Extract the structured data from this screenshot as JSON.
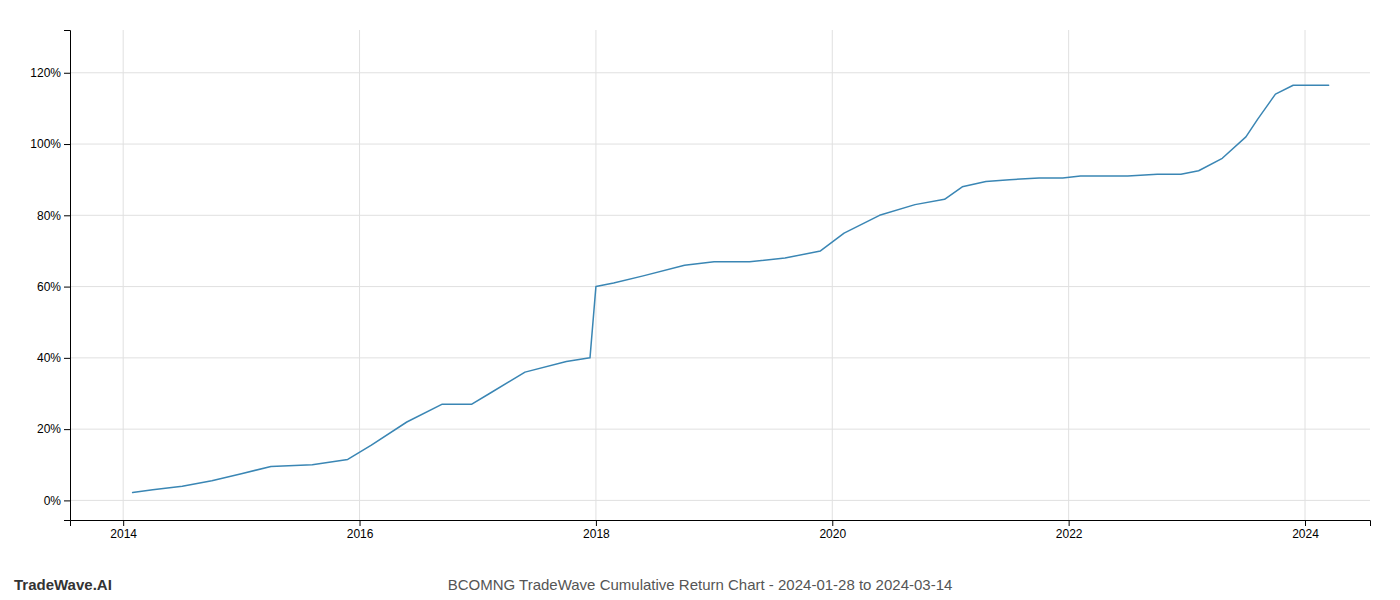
{
  "chart_data": {
    "type": "line",
    "title": "BCOMNG TradeWave Cumulative Return Chart - 2024-01-28 to 2024-03-14",
    "annotations": [
      "TradeWave.AI"
    ],
    "color": "#3a86b4",
    "grid": true,
    "x": [
      2014.08,
      2014.25,
      2014.5,
      2014.75,
      2015.0,
      2015.25,
      2015.6,
      2015.9,
      2016.1,
      2016.4,
      2016.7,
      2016.95,
      2017.1,
      2017.4,
      2017.75,
      2017.95,
      2018.0,
      2018.15,
      2018.4,
      2018.75,
      2019.0,
      2019.3,
      2019.6,
      2019.9,
      2020.1,
      2020.4,
      2020.7,
      2020.95,
      2021.1,
      2021.3,
      2021.5,
      2021.75,
      2021.95,
      2022.1,
      2022.3,
      2022.5,
      2022.75,
      2022.95,
      2023.1,
      2023.3,
      2023.5,
      2023.6,
      2023.75,
      2023.9,
      2024.0,
      2024.15,
      2024.2
    ],
    "values": [
      0.022,
      0.03,
      0.04,
      0.055,
      0.075,
      0.095,
      0.1,
      0.115,
      0.155,
      0.22,
      0.27,
      0.27,
      0.3,
      0.36,
      0.39,
      0.4,
      0.6,
      0.61,
      0.63,
      0.66,
      0.67,
      0.67,
      0.68,
      0.7,
      0.75,
      0.8,
      0.83,
      0.845,
      0.88,
      0.895,
      0.9,
      0.905,
      0.905,
      0.91,
      0.91,
      0.91,
      0.915,
      0.915,
      0.925,
      0.96,
      1.02,
      1.07,
      1.14,
      1.165,
      1.165,
      1.165,
      1.165
    ],
    "xlim": [
      2013.55,
      2024.55
    ],
    "ylim": [
      -0.055,
      1.32
    ],
    "xticks": [
      2014,
      2016,
      2018,
      2020,
      2022,
      2024
    ],
    "yticks": [
      {
        "value": 0.0,
        "label": "0%"
      },
      {
        "value": 0.2,
        "label": "20%"
      },
      {
        "value": 0.4,
        "label": "40%"
      },
      {
        "value": 0.6,
        "label": "60%"
      },
      {
        "value": 0.8,
        "label": "80%"
      },
      {
        "value": 1.0,
        "label": "100%"
      },
      {
        "value": 1.2,
        "label": "120%"
      }
    ]
  }
}
